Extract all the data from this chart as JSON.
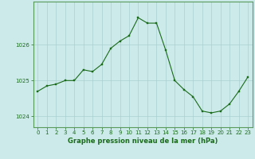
{
  "x": [
    0,
    1,
    2,
    3,
    4,
    5,
    6,
    7,
    8,
    9,
    10,
    11,
    12,
    13,
    14,
    15,
    16,
    17,
    18,
    19,
    20,
    21,
    22,
    23
  ],
  "y": [
    1024.7,
    1024.85,
    1024.9,
    1025.0,
    1025.0,
    1025.3,
    1025.25,
    1025.45,
    1025.9,
    1026.1,
    1026.25,
    1026.75,
    1026.6,
    1026.6,
    1025.85,
    1025.0,
    1024.75,
    1024.55,
    1024.15,
    1024.1,
    1024.15,
    1024.35,
    1024.7,
    1025.1
  ],
  "line_color": "#1a6b1a",
  "marker": "s",
  "marker_size": 1.8,
  "bg_color": "#cceaea",
  "grid_color": "#aacfcf",
  "ylim": [
    1023.7,
    1027.2
  ],
  "yticks": [
    1024,
    1025,
    1026
  ],
  "xlim": [
    -0.5,
    23.5
  ],
  "xticks": [
    0,
    1,
    2,
    3,
    4,
    5,
    6,
    7,
    8,
    9,
    10,
    11,
    12,
    13,
    14,
    15,
    16,
    17,
    18,
    19,
    20,
    21,
    22,
    23
  ],
  "tick_color": "#1a6b1a",
  "tick_fontsize": 5.0,
  "xlabel": "Graphe pression niveau de la mer (hPa)",
  "xlabel_fontsize": 6.0,
  "outer_border_color": "#5a9a5a",
  "linewidth": 0.8
}
